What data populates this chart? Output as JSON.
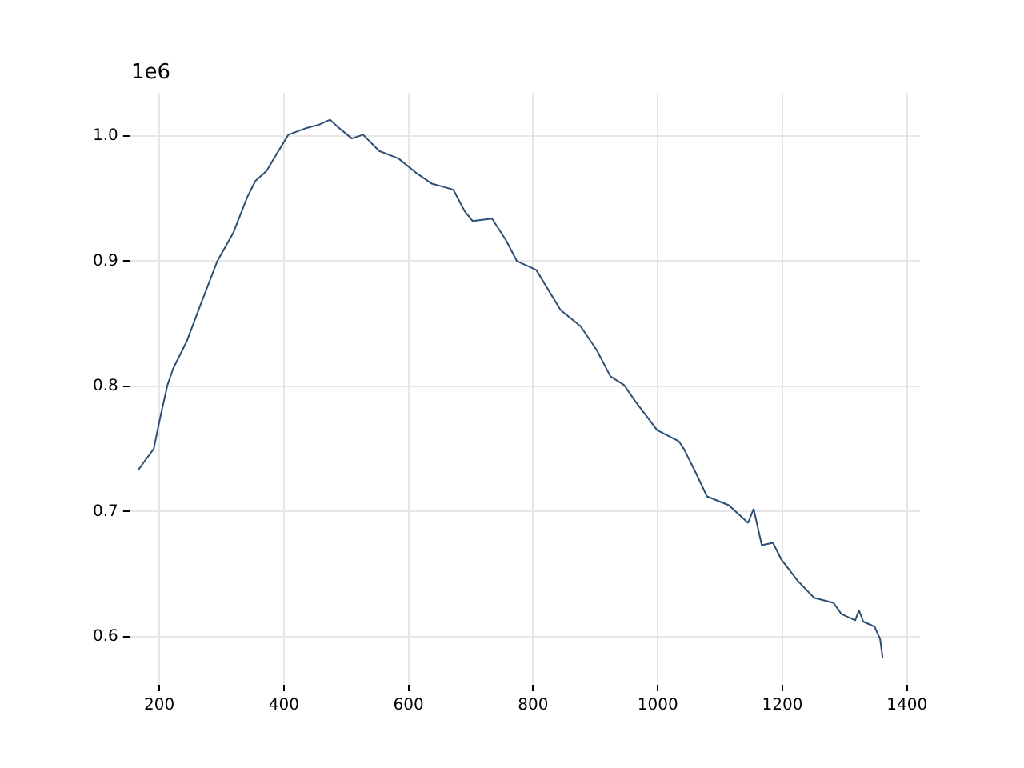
{
  "chart_data": {
    "type": "line",
    "x": [
      166,
      176,
      191,
      200,
      213,
      222,
      244,
      266,
      293,
      319,
      341,
      354,
      372,
      390,
      407,
      434,
      456,
      474,
      487,
      509,
      527,
      553,
      584,
      611,
      637,
      659,
      672,
      690,
      703,
      734,
      756,
      774,
      805,
      844,
      876,
      902,
      924,
      946,
      964,
      999,
      1034,
      1042,
      1061,
      1079,
      1114,
      1145,
      1154,
      1167,
      1185,
      1198,
      1224,
      1251,
      1282,
      1295,
      1317,
      1323,
      1330,
      1348,
      1357,
      1361
    ],
    "series": [
      {
        "color": "#2d4e74",
        "values": [
          0.733,
          0.74,
          0.75,
          0.772,
          0.801,
          0.814,
          0.836,
          0.865,
          0.9,
          0.923,
          0.951,
          0.964,
          0.972,
          0.987,
          1.001,
          1.006,
          1.009,
          1.013,
          1.007,
          0.998,
          1.001,
          0.988,
          0.982,
          0.971,
          0.962,
          0.959,
          0.957,
          0.94,
          0.932,
          0.934,
          0.917,
          0.9,
          0.893,
          0.861,
          0.848,
          0.829,
          0.808,
          0.801,
          0.788,
          0.765,
          0.756,
          0.75,
          0.731,
          0.712,
          0.705,
          0.691,
          0.702,
          0.673,
          0.675,
          0.662,
          0.645,
          0.631,
          0.627,
          0.618,
          0.613,
          0.621,
          0.612,
          0.608,
          0.598,
          0.583
        ]
      }
    ],
    "xlim": [
      152,
      1421
    ],
    "xticks": [
      200,
      400,
      600,
      800,
      1000,
      1200,
      1400
    ],
    "ylim": [
      0.5615,
      1.0345
    ],
    "yticks": [
      0.6,
      0.7,
      0.8,
      0.9,
      {
        "value": 1.0,
        "label": "1.0"
      }
    ],
    "annotations": [
      "1e6"
    ],
    "grid": true,
    "legend": false,
    "marker": "none",
    "line_style": "solid"
  }
}
